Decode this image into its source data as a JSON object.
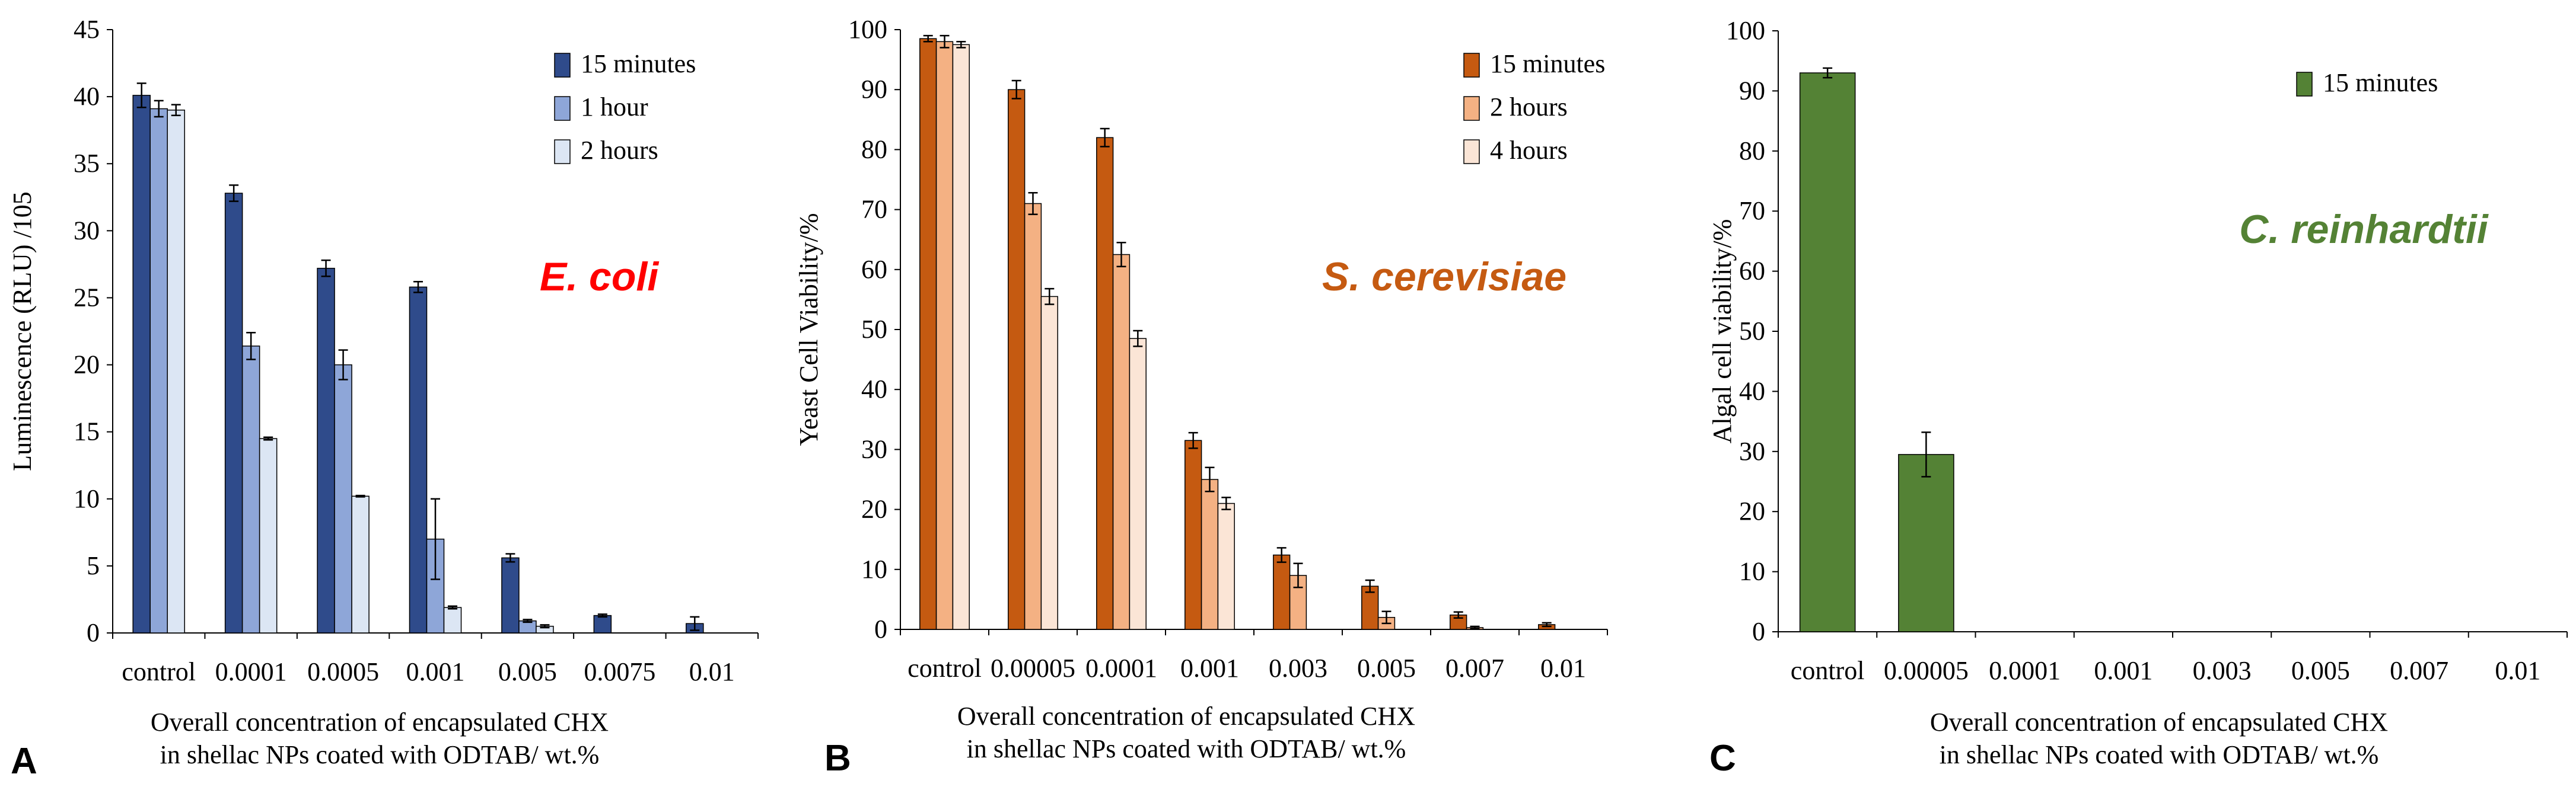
{
  "chart_data": [
    {
      "type": "bar",
      "panel": "A",
      "organism": "E. coli",
      "organism_color": "#ff0000",
      "ylabel": "Luminescence (RLU) /105",
      "xlabel_lines": [
        "Overall concentration of encapsulated CHX",
        "in shellac NPs coated with ODTAB/ wt.%"
      ],
      "ylim": [
        0,
        45
      ],
      "yticks": [
        0,
        5,
        10,
        15,
        20,
        25,
        30,
        35,
        40,
        45
      ],
      "legend_position": "top-right",
      "categories": [
        "control",
        "0.0001",
        "0.0005",
        "0.001",
        "0.005",
        "0.0075",
        "0.01"
      ],
      "series": [
        {
          "name": "15 minutes",
          "color": "#2f4b8b",
          "values": [
            40.1,
            32.8,
            27.2,
            25.8,
            5.6,
            1.3,
            0.7
          ],
          "errors": [
            0.9,
            0.6,
            0.6,
            0.4,
            0.3,
            0.1,
            0.5
          ]
        },
        {
          "name": "1 hour",
          "color": "#8ea6d8",
          "values": [
            39.1,
            21.4,
            20.0,
            7.0,
            0.9,
            0,
            0
          ],
          "errors": [
            0.6,
            1.0,
            1.1,
            3.0,
            0.1,
            0,
            0
          ]
        },
        {
          "name": "2 hours",
          "color": "#dce6f4",
          "values": [
            39.0,
            14.5,
            10.2,
            1.9,
            0.5,
            0,
            0
          ],
          "errors": [
            0.4,
            0.1,
            0.05,
            0.1,
            0.1,
            0,
            0
          ]
        }
      ]
    },
    {
      "type": "bar",
      "panel": "B",
      "organism": "S. cerevisiae",
      "organism_color": "#c55a11",
      "ylabel": "Yeast Cell Viability/%",
      "xlabel_lines": [
        "Overall concentration of encapsulated CHX",
        "in shellac NPs coated with ODTAB/ wt.%"
      ],
      "ylim": [
        0,
        100
      ],
      "yticks": [
        0,
        10,
        20,
        30,
        40,
        50,
        60,
        70,
        80,
        90,
        100
      ],
      "legend_position": "top-right",
      "categories": [
        "control",
        "0.00005",
        "0.0001",
        "0.001",
        "0.003",
        "0.005",
        "0.007",
        "0.01"
      ],
      "series": [
        {
          "name": "15 minutes",
          "color": "#c55a11",
          "values": [
            98.5,
            90.0,
            82.0,
            31.5,
            12.4,
            7.2,
            2.4,
            0.8
          ],
          "errors": [
            0.5,
            1.5,
            1.5,
            1.3,
            1.2,
            1.0,
            0.5,
            0.3
          ]
        },
        {
          "name": "2 hours",
          "color": "#f4b183",
          "values": [
            98.0,
            71.0,
            62.5,
            25.0,
            9.0,
            2.0,
            0.3,
            0
          ],
          "errors": [
            1.0,
            1.8,
            2.0,
            2.0,
            2.0,
            1.0,
            0.2,
            0
          ]
        },
        {
          "name": "4 hours",
          "color": "#fbe5d6",
          "values": [
            97.5,
            55.5,
            48.5,
            21.0,
            0,
            0,
            0,
            0
          ],
          "errors": [
            0.5,
            1.3,
            1.3,
            1.0,
            0,
            0,
            0,
            0
          ]
        }
      ]
    },
    {
      "type": "bar",
      "panel": "C",
      "organism": "C. reinhardtii",
      "organism_color": "#548235",
      "ylabel": "Algal cell viability/%",
      "xlabel_lines": [
        "Overall concentration of encapsulated CHX",
        "in shellac NPs coated with ODTAB/ wt.%"
      ],
      "ylim": [
        0,
        100
      ],
      "yticks": [
        0,
        10,
        20,
        30,
        40,
        50,
        60,
        70,
        80,
        90,
        100
      ],
      "legend_position": "top-right",
      "categories": [
        "control",
        "0.00005",
        "0.0001",
        "0.001",
        "0.003",
        "0.005",
        "0.007",
        "0.01"
      ],
      "series": [
        {
          "name": "15 minutes",
          "color": "#548235",
          "values": [
            93.0,
            29.5,
            0,
            0,
            0,
            0,
            0,
            0
          ],
          "errors": [
            0.8,
            3.7,
            0,
            0,
            0,
            0,
            0,
            0
          ]
        }
      ]
    }
  ]
}
